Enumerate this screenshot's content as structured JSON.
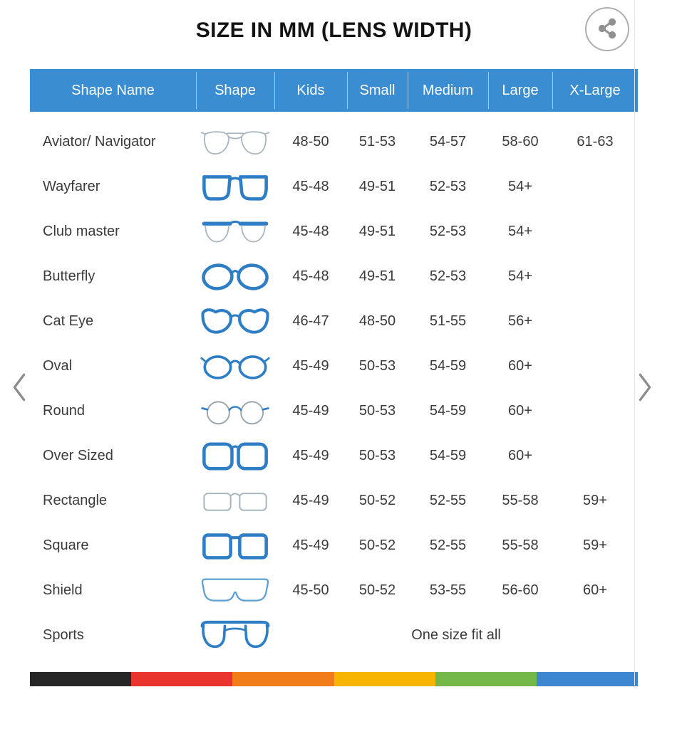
{
  "title": "SIZE IN MM (LENS WIDTH)",
  "share": {
    "label": "share"
  },
  "table": {
    "columns": [
      "Shape Name",
      "Shape",
      "Kids",
      "Small",
      "Medium",
      "Large",
      "X-Large"
    ],
    "rows": [
      {
        "name": "Aviator/ Navigator",
        "icon": "aviator-glasses-icon",
        "sizes": [
          "48-50",
          "51-53",
          "54-57",
          "58-60",
          "61-63"
        ]
      },
      {
        "name": "Wayfarer",
        "icon": "wayfarer-glasses-icon",
        "sizes": [
          "45-48",
          "49-51",
          "52-53",
          "54+",
          ""
        ]
      },
      {
        "name": "Club master",
        "icon": "clubmaster-glasses-icon",
        "sizes": [
          "45-48",
          "49-51",
          "52-53",
          "54+",
          ""
        ]
      },
      {
        "name": "Butterfly",
        "icon": "butterfly-glasses-icon",
        "sizes": [
          "45-48",
          "49-51",
          "52-53",
          "54+",
          ""
        ]
      },
      {
        "name": "Cat Eye",
        "icon": "cateye-glasses-icon",
        "sizes": [
          "46-47",
          "48-50",
          "51-55",
          "56+",
          ""
        ]
      },
      {
        "name": "Oval",
        "icon": "oval-glasses-icon",
        "sizes": [
          "45-49",
          "50-53",
          "54-59",
          "60+",
          ""
        ]
      },
      {
        "name": "Round",
        "icon": "round-glasses-icon",
        "sizes": [
          "45-49",
          "50-53",
          "54-59",
          "60+",
          ""
        ]
      },
      {
        "name": "Over Sized",
        "icon": "oversized-glasses-icon",
        "sizes": [
          "45-49",
          "50-53",
          "54-59",
          "60+",
          ""
        ]
      },
      {
        "name": "Rectangle",
        "icon": "rectangle-glasses-icon",
        "sizes": [
          "45-49",
          "50-52",
          "52-55",
          "55-58",
          "59+"
        ]
      },
      {
        "name": "Square",
        "icon": "square-glasses-icon",
        "sizes": [
          "45-49",
          "50-52",
          "52-55",
          "55-58",
          "59+"
        ]
      },
      {
        "name": "Shield",
        "icon": "shield-glasses-icon",
        "sizes": [
          "45-50",
          "50-52",
          "53-55",
          "56-60",
          "60+"
        ]
      },
      {
        "name": "Sports",
        "icon": "sports-glasses-icon",
        "sizes_note": "One size fit all"
      }
    ]
  },
  "carousel": {
    "prev_icon": "chevron-left-icon",
    "next_icon": "chevron-right-icon"
  },
  "footer_stripe_colors": [
    "#262626",
    "#e8342c",
    "#f07d1a",
    "#f7b400",
    "#72b748",
    "#3d87d0"
  ],
  "colors": {
    "header_bg": "#3a8dd1",
    "header_text": "#ffffff",
    "frame_blue": "#2e7ec6",
    "frame_light": "#a9b6bf",
    "frame_lightblue": "#5d9fd4",
    "body_text": "#3b3b3b"
  }
}
